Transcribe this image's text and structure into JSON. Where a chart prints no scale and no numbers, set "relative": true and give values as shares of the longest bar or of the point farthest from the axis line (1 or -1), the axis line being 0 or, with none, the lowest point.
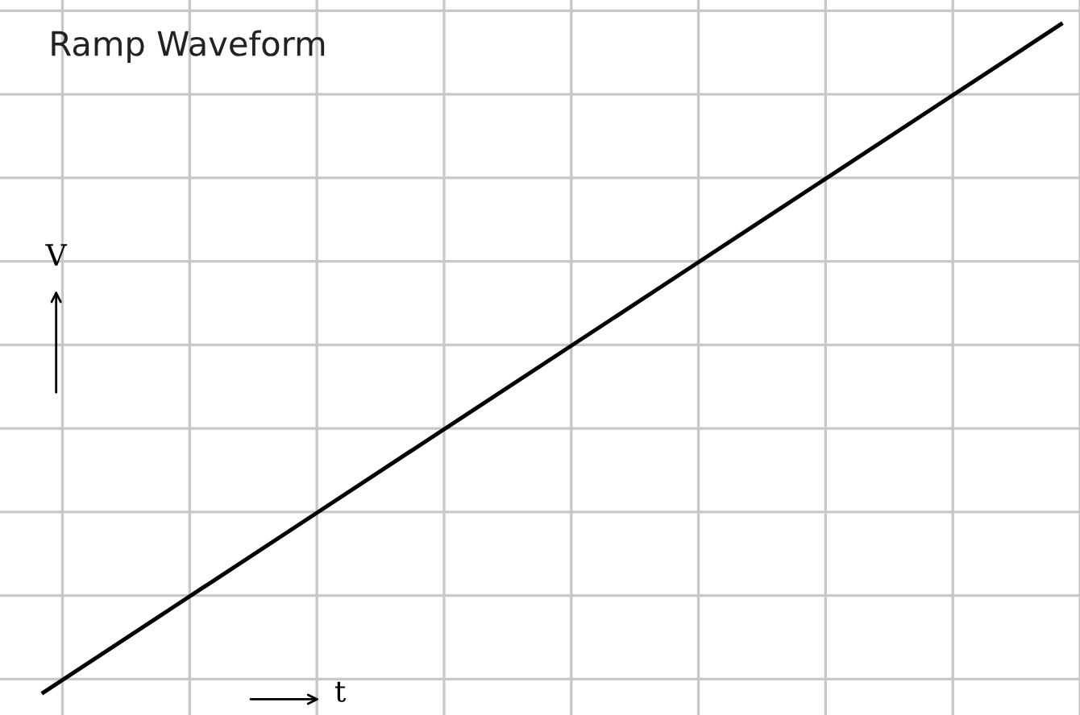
{
  "chart_data": {
    "type": "line",
    "title": "Ramp Waveform",
    "xlabel": "t",
    "ylabel": "V",
    "relative": true,
    "grid": true,
    "categories": [
      null,
      null,
      null,
      null,
      null,
      null,
      null,
      null,
      null
    ],
    "series": [
      {
        "color": "#000000",
        "values": [
          0,
          0.125,
          0.25,
          0.375,
          0.5,
          0.625,
          0.75,
          0.875,
          1
        ]
      }
    ]
  }
}
